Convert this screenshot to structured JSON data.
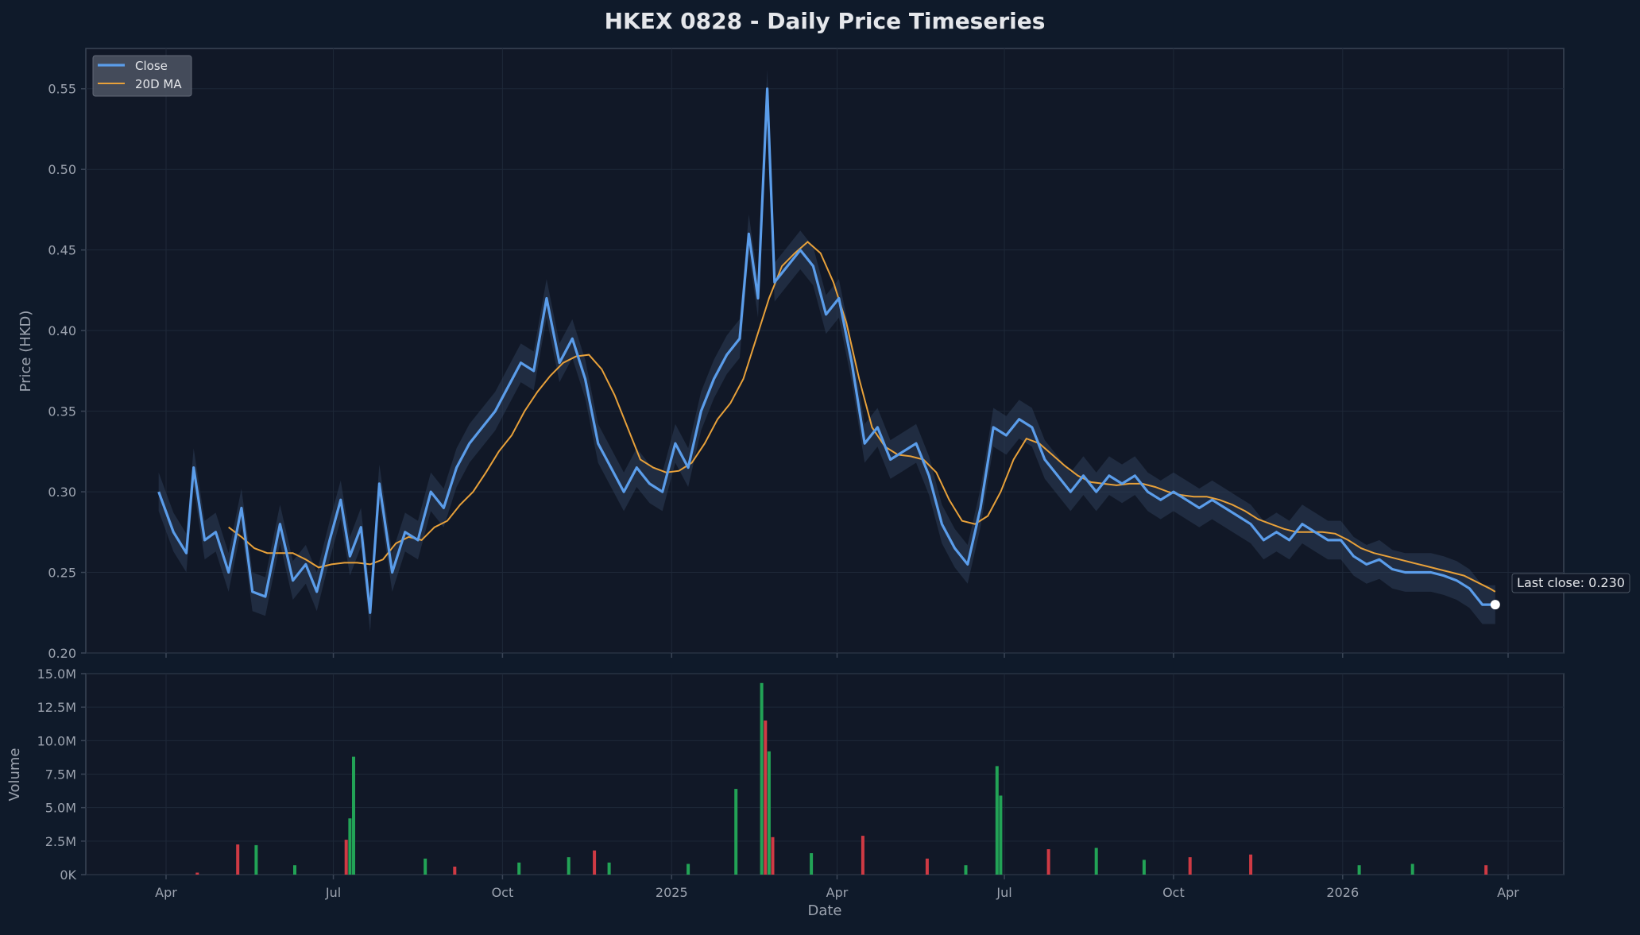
{
  "colors": {
    "page_bg": "#0f1a2a",
    "plot_bg": "#111827",
    "spine": "#3a4556",
    "grid": "#1e2838",
    "text": "#e5e7eb",
    "muted": "#9ca3af",
    "close": "#5b9dea",
    "band": "#2d3e57",
    "ma": "#e8a13a",
    "vol_up": "#22a356",
    "vol_down": "#cf3a44"
  },
  "chart_data": {
    "type": "line",
    "title": "HKEX 0828 - Daily Price Timeseries",
    "xlabel": "Date",
    "ylabel": "Price (HKD)",
    "ylabel_volume": "Volume",
    "x_ticks": [
      "Apr",
      "Jul",
      "Oct",
      "2025",
      "Apr",
      "Jul",
      "Oct",
      "2026",
      "Apr"
    ],
    "y_ticks": [
      "0.20",
      "0.25",
      "0.30",
      "0.35",
      "0.40",
      "0.45",
      "0.50",
      "0.55"
    ],
    "ylim": [
      0.2,
      0.575
    ],
    "volume_ticks": [
      "0K",
      "2.5M",
      "5.0M",
      "7.5M",
      "10.0M",
      "12.5M",
      "15.0M"
    ],
    "volume_ylim": [
      0,
      15000000
    ],
    "legend_position": "top-left",
    "legend": [
      "Close",
      "20D MA"
    ],
    "annotation": "Last close: 0.230",
    "series": [
      {
        "name": "Close",
        "points": [
          [
            "2024-03-28",
            0.3
          ],
          [
            "2024-04-05",
            0.275
          ],
          [
            "2024-04-12",
            0.262
          ],
          [
            "2024-04-16",
            0.315
          ],
          [
            "2024-04-22",
            0.27
          ],
          [
            "2024-04-28",
            0.275
          ],
          [
            "2024-05-05",
            0.25
          ],
          [
            "2024-05-12",
            0.29
          ],
          [
            "2024-05-18",
            0.238
          ],
          [
            "2024-05-25",
            0.235
          ],
          [
            "2024-06-02",
            0.28
          ],
          [
            "2024-06-09",
            0.245
          ],
          [
            "2024-06-16",
            0.255
          ],
          [
            "2024-06-22",
            0.238
          ],
          [
            "2024-06-29",
            0.27
          ],
          [
            "2024-07-05",
            0.295
          ],
          [
            "2024-07-10",
            0.26
          ],
          [
            "2024-07-16",
            0.278
          ],
          [
            "2024-07-21",
            0.225
          ],
          [
            "2024-07-26",
            0.305
          ],
          [
            "2024-08-02",
            0.25
          ],
          [
            "2024-08-09",
            0.275
          ],
          [
            "2024-08-16",
            0.27
          ],
          [
            "2024-08-23",
            0.3
          ],
          [
            "2024-08-30",
            0.29
          ],
          [
            "2024-09-06",
            0.315
          ],
          [
            "2024-09-13",
            0.33
          ],
          [
            "2024-09-20",
            0.34
          ],
          [
            "2024-09-27",
            0.35
          ],
          [
            "2024-10-04",
            0.365
          ],
          [
            "2024-10-11",
            0.38
          ],
          [
            "2024-10-18",
            0.375
          ],
          [
            "2024-10-25",
            0.42
          ],
          [
            "2024-11-01",
            0.38
          ],
          [
            "2024-11-08",
            0.395
          ],
          [
            "2024-11-15",
            0.37
          ],
          [
            "2024-11-22",
            0.33
          ],
          [
            "2024-11-29",
            0.315
          ],
          [
            "2024-12-06",
            0.3
          ],
          [
            "2024-12-13",
            0.315
          ],
          [
            "2024-12-20",
            0.305
          ],
          [
            "2024-12-27",
            0.3
          ],
          [
            "2025-01-03",
            0.33
          ],
          [
            "2025-01-10",
            0.315
          ],
          [
            "2025-01-17",
            0.35
          ],
          [
            "2025-01-24",
            0.37
          ],
          [
            "2025-01-31",
            0.385
          ],
          [
            "2025-02-07",
            0.395
          ],
          [
            "2025-02-12",
            0.46
          ],
          [
            "2025-02-17",
            0.42
          ],
          [
            "2025-02-22",
            0.55
          ],
          [
            "2025-02-26",
            0.43
          ],
          [
            "2025-03-05",
            0.44
          ],
          [
            "2025-03-12",
            0.45
          ],
          [
            "2025-03-19",
            0.44
          ],
          [
            "2025-03-26",
            0.41
          ],
          [
            "2025-04-02",
            0.42
          ],
          [
            "2025-04-09",
            0.38
          ],
          [
            "2025-04-16",
            0.33
          ],
          [
            "2025-04-23",
            0.34
          ],
          [
            "2025-04-30",
            0.32
          ],
          [
            "2025-05-07",
            0.325
          ],
          [
            "2025-05-14",
            0.33
          ],
          [
            "2025-05-21",
            0.31
          ],
          [
            "2025-05-28",
            0.28
          ],
          [
            "2025-06-04",
            0.265
          ],
          [
            "2025-06-11",
            0.255
          ],
          [
            "2025-06-18",
            0.29
          ],
          [
            "2025-06-25",
            0.34
          ],
          [
            "2025-07-02",
            0.335
          ],
          [
            "2025-07-09",
            0.345
          ],
          [
            "2025-07-16",
            0.34
          ],
          [
            "2025-07-23",
            0.32
          ],
          [
            "2025-07-30",
            0.31
          ],
          [
            "2025-08-06",
            0.3
          ],
          [
            "2025-08-13",
            0.31
          ],
          [
            "2025-08-20",
            0.3
          ],
          [
            "2025-08-27",
            0.31
          ],
          [
            "2025-09-03",
            0.305
          ],
          [
            "2025-09-10",
            0.31
          ],
          [
            "2025-09-17",
            0.3
          ],
          [
            "2025-09-24",
            0.295
          ],
          [
            "2025-10-01",
            0.3
          ],
          [
            "2025-10-08",
            0.295
          ],
          [
            "2025-10-15",
            0.29
          ],
          [
            "2025-10-22",
            0.295
          ],
          [
            "2025-10-29",
            0.29
          ],
          [
            "2025-11-05",
            0.285
          ],
          [
            "2025-11-12",
            0.28
          ],
          [
            "2025-11-19",
            0.27
          ],
          [
            "2025-11-26",
            0.275
          ],
          [
            "2025-12-03",
            0.27
          ],
          [
            "2025-12-10",
            0.28
          ],
          [
            "2025-12-17",
            0.275
          ],
          [
            "2025-12-24",
            0.27
          ],
          [
            "2025-12-31",
            0.27
          ],
          [
            "2026-01-07",
            0.26
          ],
          [
            "2026-01-14",
            0.255
          ],
          [
            "2026-01-21",
            0.258
          ],
          [
            "2026-01-28",
            0.252
          ],
          [
            "2026-02-04",
            0.25
          ],
          [
            "2026-02-11",
            0.25
          ],
          [
            "2026-02-18",
            0.25
          ],
          [
            "2026-02-25",
            0.248
          ],
          [
            "2026-03-04",
            0.245
          ],
          [
            "2026-03-11",
            0.24
          ],
          [
            "2026-03-18",
            0.23
          ],
          [
            "2026-03-25",
            0.23
          ]
        ]
      },
      {
        "name": "20D MA",
        "points": [
          [
            "2024-05-05",
            0.278
          ],
          [
            "2024-05-12",
            0.272
          ],
          [
            "2024-05-19",
            0.265
          ],
          [
            "2024-05-26",
            0.262
          ],
          [
            "2024-06-02",
            0.262
          ],
          [
            "2024-06-09",
            0.262
          ],
          [
            "2024-06-16",
            0.258
          ],
          [
            "2024-06-23",
            0.253
          ],
          [
            "2024-06-30",
            0.255
          ],
          [
            "2024-07-07",
            0.256
          ],
          [
            "2024-07-14",
            0.256
          ],
          [
            "2024-07-21",
            0.255
          ],
          [
            "2024-07-28",
            0.258
          ],
          [
            "2024-08-04",
            0.268
          ],
          [
            "2024-08-11",
            0.272
          ],
          [
            "2024-08-18",
            0.27
          ],
          [
            "2024-08-25",
            0.278
          ],
          [
            "2024-09-01",
            0.282
          ],
          [
            "2024-09-08",
            0.292
          ],
          [
            "2024-09-15",
            0.3
          ],
          [
            "2024-09-22",
            0.312
          ],
          [
            "2024-09-29",
            0.325
          ],
          [
            "2024-10-06",
            0.335
          ],
          [
            "2024-10-13",
            0.35
          ],
          [
            "2024-10-20",
            0.362
          ],
          [
            "2024-10-27",
            0.372
          ],
          [
            "2024-11-03",
            0.38
          ],
          [
            "2024-11-10",
            0.384
          ],
          [
            "2024-11-17",
            0.385
          ],
          [
            "2024-11-24",
            0.376
          ],
          [
            "2024-12-01",
            0.36
          ],
          [
            "2024-12-08",
            0.34
          ],
          [
            "2024-12-15",
            0.32
          ],
          [
            "2024-12-22",
            0.315
          ],
          [
            "2024-12-29",
            0.312
          ],
          [
            "2025-01-05",
            0.313
          ],
          [
            "2025-01-12",
            0.318
          ],
          [
            "2025-01-19",
            0.33
          ],
          [
            "2025-01-26",
            0.345
          ],
          [
            "2025-02-02",
            0.355
          ],
          [
            "2025-02-09",
            0.37
          ],
          [
            "2025-02-16",
            0.395
          ],
          [
            "2025-02-23",
            0.42
          ],
          [
            "2025-03-02",
            0.44
          ],
          [
            "2025-03-09",
            0.448
          ],
          [
            "2025-03-16",
            0.455
          ],
          [
            "2025-03-23",
            0.448
          ],
          [
            "2025-03-30",
            0.43
          ],
          [
            "2025-04-06",
            0.405
          ],
          [
            "2025-04-13",
            0.37
          ],
          [
            "2025-04-20",
            0.34
          ],
          [
            "2025-04-27",
            0.328
          ],
          [
            "2025-05-04",
            0.323
          ],
          [
            "2025-05-11",
            0.322
          ],
          [
            "2025-05-18",
            0.32
          ],
          [
            "2025-05-25",
            0.312
          ],
          [
            "2025-06-01",
            0.295
          ],
          [
            "2025-06-08",
            0.282
          ],
          [
            "2025-06-15",
            0.28
          ],
          [
            "2025-06-22",
            0.285
          ],
          [
            "2025-06-29",
            0.3
          ],
          [
            "2025-07-06",
            0.32
          ],
          [
            "2025-07-13",
            0.333
          ],
          [
            "2025-07-20",
            0.33
          ],
          [
            "2025-07-27",
            0.323
          ],
          [
            "2025-08-03",
            0.316
          ],
          [
            "2025-08-10",
            0.31
          ],
          [
            "2025-08-17",
            0.306
          ],
          [
            "2025-08-24",
            0.305
          ],
          [
            "2025-08-31",
            0.304
          ],
          [
            "2025-09-07",
            0.305
          ],
          [
            "2025-09-14",
            0.305
          ],
          [
            "2025-09-21",
            0.303
          ],
          [
            "2025-09-28",
            0.3
          ],
          [
            "2025-10-05",
            0.298
          ],
          [
            "2025-10-12",
            0.297
          ],
          [
            "2025-10-19",
            0.297
          ],
          [
            "2025-10-26",
            0.295
          ],
          [
            "2025-11-02",
            0.292
          ],
          [
            "2025-11-09",
            0.288
          ],
          [
            "2025-11-16",
            0.283
          ],
          [
            "2025-11-23",
            0.28
          ],
          [
            "2025-11-30",
            0.277
          ],
          [
            "2025-12-07",
            0.275
          ],
          [
            "2025-12-14",
            0.275
          ],
          [
            "2025-12-21",
            0.275
          ],
          [
            "2025-12-28",
            0.274
          ],
          [
            "2026-01-04",
            0.27
          ],
          [
            "2026-01-11",
            0.265
          ],
          [
            "2026-01-18",
            0.262
          ],
          [
            "2026-01-25",
            0.26
          ],
          [
            "2026-02-01",
            0.258
          ],
          [
            "2026-02-08",
            0.256
          ],
          [
            "2026-02-15",
            0.254
          ],
          [
            "2026-02-22",
            0.252
          ],
          [
            "2026-03-01",
            0.25
          ],
          [
            "2026-03-08",
            0.248
          ],
          [
            "2026-03-15",
            0.244
          ],
          [
            "2026-03-22",
            0.24
          ],
          [
            "2026-03-25",
            0.238
          ]
        ]
      },
      {
        "name": "Volume",
        "points": [
          [
            "2024-04-18",
            150000,
            "down"
          ],
          [
            "2024-05-10",
            2250000,
            "down"
          ],
          [
            "2024-05-20",
            2200000,
            "up"
          ],
          [
            "2024-06-10",
            700000,
            "up"
          ],
          [
            "2024-07-08",
            2600000,
            "down"
          ],
          [
            "2024-07-10",
            4200000,
            "up"
          ],
          [
            "2024-07-12",
            8800000,
            "up"
          ],
          [
            "2024-08-20",
            1200000,
            "up"
          ],
          [
            "2024-09-05",
            600000,
            "down"
          ],
          [
            "2024-10-10",
            900000,
            "up"
          ],
          [
            "2024-11-06",
            1300000,
            "up"
          ],
          [
            "2024-11-20",
            1800000,
            "down"
          ],
          [
            "2024-11-28",
            900000,
            "up"
          ],
          [
            "2025-01-10",
            800000,
            "up"
          ],
          [
            "2025-02-05",
            6400000,
            "up"
          ],
          [
            "2025-02-19",
            14300000,
            "up"
          ],
          [
            "2025-02-21",
            11500000,
            "down"
          ],
          [
            "2025-02-23",
            9200000,
            "up"
          ],
          [
            "2025-02-25",
            2800000,
            "down"
          ],
          [
            "2025-03-18",
            1600000,
            "up"
          ],
          [
            "2025-04-15",
            2900000,
            "down"
          ],
          [
            "2025-05-20",
            1200000,
            "down"
          ],
          [
            "2025-06-10",
            700000,
            "up"
          ],
          [
            "2025-06-27",
            8100000,
            "up"
          ],
          [
            "2025-06-29",
            5900000,
            "up"
          ],
          [
            "2025-07-25",
            1900000,
            "down"
          ],
          [
            "2025-08-20",
            2000000,
            "up"
          ],
          [
            "2025-09-15",
            1100000,
            "up"
          ],
          [
            "2025-10-10",
            1300000,
            "down"
          ],
          [
            "2025-11-12",
            1500000,
            "down"
          ],
          [
            "2026-01-10",
            700000,
            "up"
          ],
          [
            "2026-02-08",
            800000,
            "up"
          ],
          [
            "2026-03-20",
            700000,
            "down"
          ]
        ]
      }
    ]
  }
}
